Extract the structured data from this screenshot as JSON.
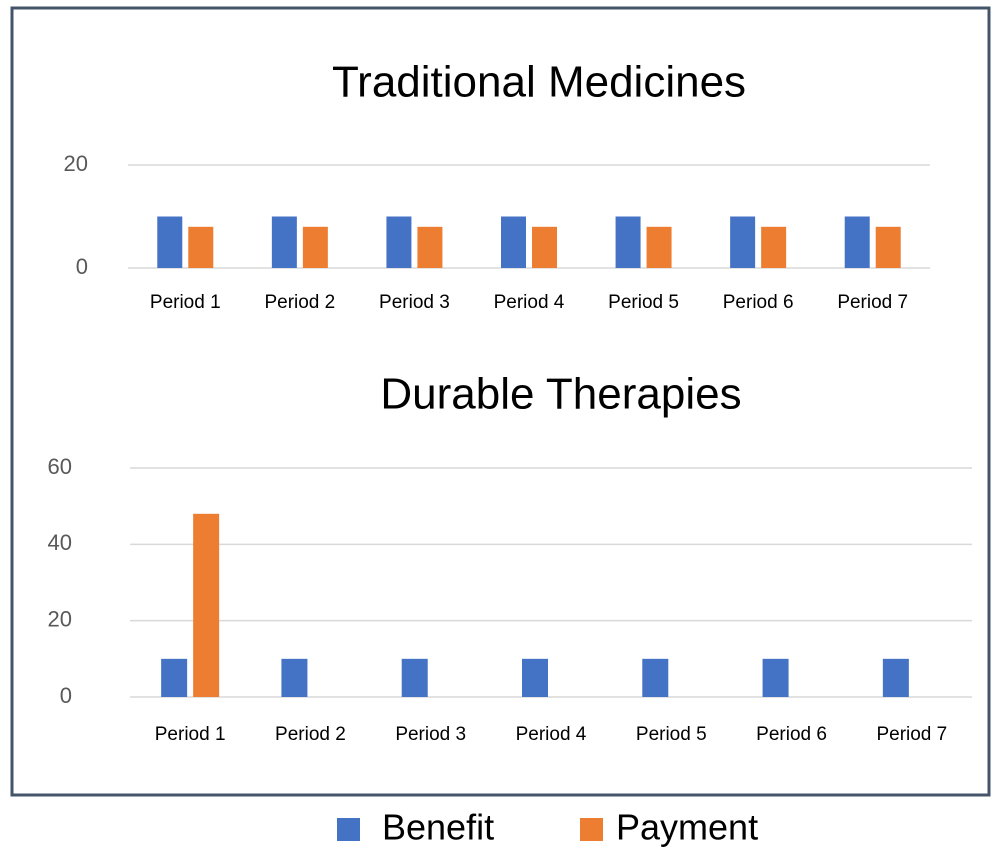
{
  "chart_data": [
    {
      "type": "bar",
      "title": "Traditional Medicines",
      "categories": [
        "Period 1",
        "Period 2",
        "Period 3",
        "Period 4",
        "Period 5",
        "Period 6",
        "Period 7"
      ],
      "series": [
        {
          "name": "Benefit",
          "color": "#4472c4",
          "values": [
            10,
            10,
            10,
            10,
            10,
            10,
            10
          ]
        },
        {
          "name": "Payment",
          "color": "#ed7d31",
          "values": [
            8,
            8,
            8,
            8,
            8,
            8,
            8
          ]
        }
      ],
      "ylim": [
        0,
        20
      ],
      "yticks": [
        0,
        20
      ],
      "grid": true
    },
    {
      "type": "bar",
      "title": "Durable Therapies",
      "categories": [
        "Period 1",
        "Period 2",
        "Period 3",
        "Period 4",
        "Period 5",
        "Period 6",
        "Period 7"
      ],
      "series": [
        {
          "color": "#4472c4",
          "values": [
            10,
            10,
            10,
            10,
            10,
            10,
            10
          ]
        },
        {
          "color": "#ed7d31",
          "values": [
            48,
            0,
            0,
            0,
            0,
            0,
            0
          ]
        }
      ],
      "ylim": [
        0,
        60
      ],
      "yticks": [
        0,
        20,
        40,
        60
      ],
      "grid": true
    }
  ]
}
